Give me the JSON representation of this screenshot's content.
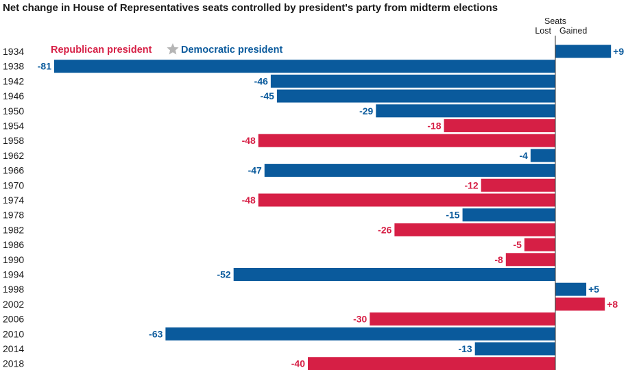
{
  "chart_data": {
    "type": "bar",
    "orientation": "horizontal",
    "title": "Net change in House of Representatives seats controlled by president's party from midterm elections",
    "axis_header": {
      "top": "Seats",
      "left": "Lost",
      "right": "Gained"
    },
    "legend": {
      "placement": "top-left",
      "items": [
        {
          "name": "Republican president",
          "color": "#d61f45"
        },
        {
          "name": "Democratic president",
          "color": "#0a5a9c"
        }
      ],
      "separator_icon": "star-icon"
    },
    "categories": [
      "1934",
      "1938",
      "1942",
      "1946",
      "1950",
      "1954",
      "1958",
      "1962",
      "1966",
      "1970",
      "1974",
      "1978",
      "1982",
      "1986",
      "1990",
      "1994",
      "1998",
      "2002",
      "2006",
      "2010",
      "2014",
      "2018"
    ],
    "values": [
      9,
      -81,
      -46,
      -45,
      -29,
      -18,
      -48,
      -4,
      -47,
      -12,
      -48,
      -15,
      -26,
      -5,
      -8,
      -52,
      5,
      8,
      -30,
      -63,
      -13,
      -40
    ],
    "labels": [
      "+9",
      "-81",
      "-46",
      "-45",
      "-29",
      "-18",
      "-48",
      "-4",
      "-47",
      "-12",
      "-48",
      "-15",
      "-26",
      "-5",
      "-8",
      "-52",
      "+5",
      "+8",
      "-30",
      "-63",
      "-13",
      "-40"
    ],
    "party": [
      "D",
      "D",
      "D",
      "D",
      "D",
      "R",
      "R",
      "D",
      "D",
      "R",
      "R",
      "D",
      "R",
      "R",
      "R",
      "D",
      "D",
      "R",
      "R",
      "D",
      "D",
      "R"
    ],
    "xlim": [
      -81,
      9
    ]
  }
}
